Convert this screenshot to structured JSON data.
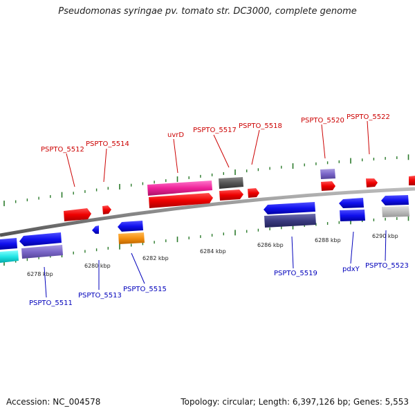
{
  "title": "Pseudomonas syringae pv. tomato str. DC3000, complete genome",
  "footer": {
    "accession": "Accession: NC_004578",
    "stats": "Topology: circular; Length: 6,397,126 bp; Genes: 5,553"
  },
  "colors": {
    "plus_label": "#cc0000",
    "minus_label": "#0000bb",
    "tick_green": "#2a7a2a",
    "backbone": "#888888"
  },
  "scale_ticks": [
    "6278 kbp",
    "6280 kbp",
    "6282 kbp",
    "6284 kbp",
    "6286 kbp",
    "6288 kbp",
    "6290 kbp"
  ],
  "plus_strand_labels": [
    "PSPTO_5512",
    "PSPTO_5514",
    "uvrD",
    "PSPTO_5517",
    "PSPTO_5518",
    "PSPTO_5520",
    "PSPTO_5522"
  ],
  "minus_strand_labels": [
    "PSPTO_5511",
    "PSPTO_5513",
    "PSPTO_5515",
    "PSPTO_5519",
    "pdxY",
    "PSPTO_5523"
  ]
}
